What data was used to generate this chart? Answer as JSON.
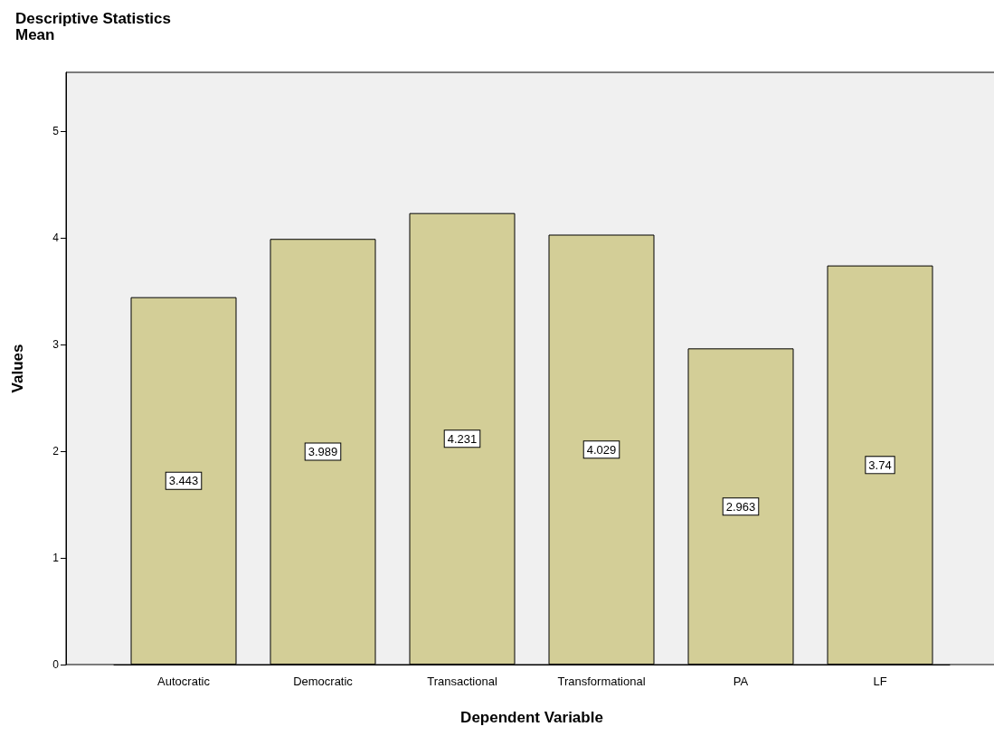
{
  "chart_data": {
    "type": "bar",
    "title": "Descriptive Statistics",
    "subtitle": "Mean",
    "xlabel": "Dependent Variable",
    "ylabel": "Values",
    "categories": [
      "Autocratic",
      "Democratic",
      "Transactional",
      "Transformational",
      "PA",
      "LF"
    ],
    "values": [
      3.443,
      3.989,
      4.231,
      4.029,
      2.963,
      3.74
    ],
    "color": "#d3ce97",
    "ylim": [
      0,
      5.55
    ],
    "yticks": [
      0,
      1,
      2,
      3,
      4,
      5
    ],
    "grid": false,
    "data_labels": true
  }
}
